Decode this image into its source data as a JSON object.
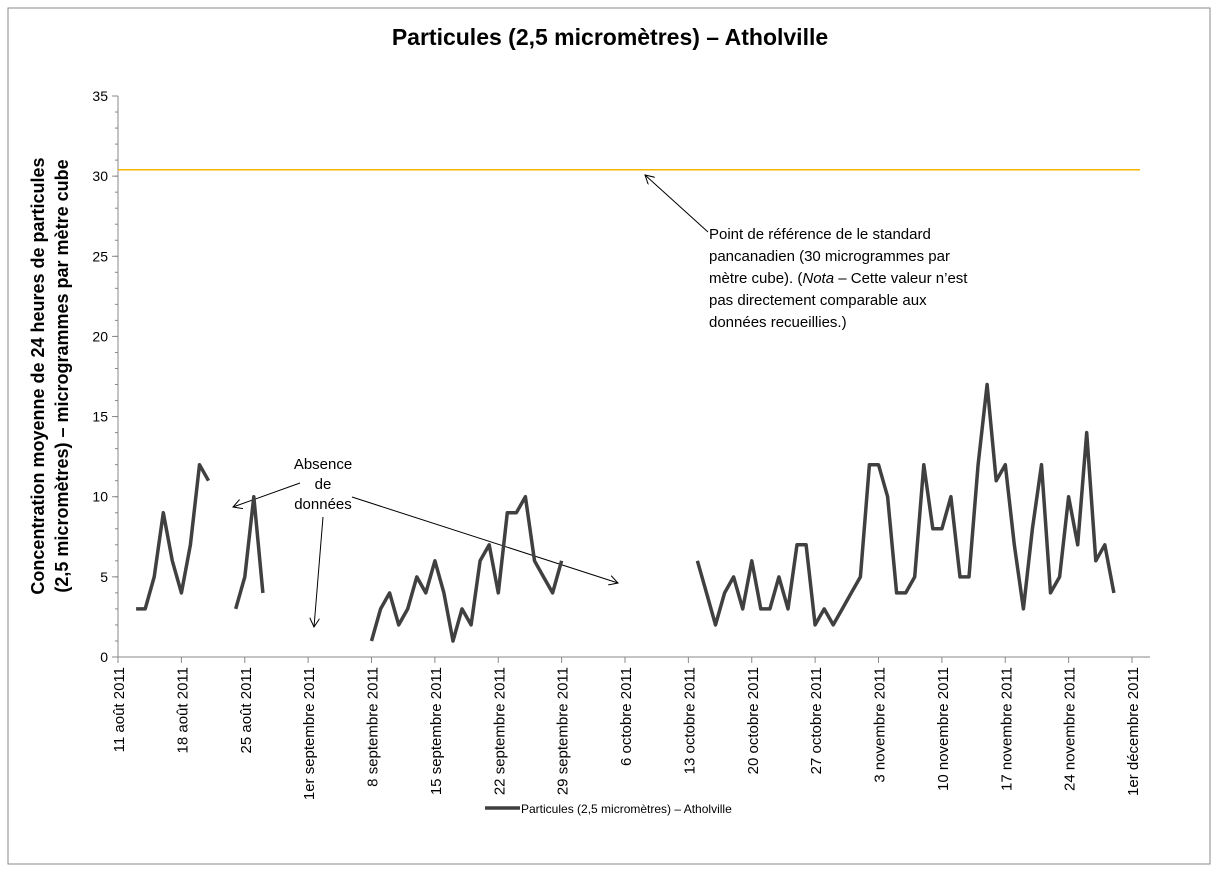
{
  "chart_data": {
    "type": "line",
    "title": "Particules (2,5 micromètres) – Atholville",
    "y_label_lines": [
      "Concentration moyenne de 24 heures de particules",
      "(2,5 micromètres) – microgrammes par mètre cube"
    ],
    "x": [
      "2011-08-13",
      "2011-08-14",
      "2011-08-15",
      "2011-08-16",
      "2011-08-17",
      "2011-08-18",
      "2011-08-19",
      "2011-08-20",
      "2011-08-21",
      "2011-08-22",
      "2011-08-24",
      "2011-08-25",
      "2011-08-26",
      "2011-08-27",
      "2011-08-28",
      "2011-09-08",
      "2011-09-09",
      "2011-09-10",
      "2011-09-11",
      "2011-09-12",
      "2011-09-13",
      "2011-09-14",
      "2011-09-15",
      "2011-09-16",
      "2011-09-17",
      "2011-09-18",
      "2011-09-19",
      "2011-09-20",
      "2011-09-21",
      "2011-09-22",
      "2011-09-23",
      "2011-09-24",
      "2011-09-25",
      "2011-09-26",
      "2011-09-27",
      "2011-09-28",
      "2011-09-29",
      "2011-09-30",
      "2011-10-14",
      "2011-10-15",
      "2011-10-16",
      "2011-10-17",
      "2011-10-18",
      "2011-10-19",
      "2011-10-20",
      "2011-10-21",
      "2011-10-22",
      "2011-10-23",
      "2011-10-24",
      "2011-10-25",
      "2011-10-26",
      "2011-10-27",
      "2011-10-28",
      "2011-10-29",
      "2011-10-30",
      "2011-10-31",
      "2011-11-01",
      "2011-11-02",
      "2011-11-03",
      "2011-11-04",
      "2011-11-05",
      "2011-11-06",
      "2011-11-07",
      "2011-11-08",
      "2011-11-09",
      "2011-11-10",
      "2011-11-11",
      "2011-11-12",
      "2011-11-13",
      "2011-11-14",
      "2011-11-15",
      "2011-11-16",
      "2011-11-17",
      "2011-11-18",
      "2011-11-19",
      "2011-11-20",
      "2011-11-21",
      "2011-11-22",
      "2011-11-23",
      "2011-11-24",
      "2011-11-25",
      "2011-11-26",
      "2011-11-27",
      "2011-11-28",
      "2011-11-29"
    ],
    "series": [
      {
        "name": "Particules (2,5 micromètres) – Atholville",
        "color": "#404040",
        "values": [
          3,
          3,
          5,
          9,
          6,
          4,
          7,
          12,
          11,
          null,
          3,
          5,
          10,
          4,
          null,
          1,
          3,
          4,
          2,
          3,
          5,
          4,
          6,
          4,
          1,
          3,
          2,
          6,
          7,
          4,
          9,
          9,
          10,
          6,
          5,
          4,
          6,
          null,
          6,
          4,
          2,
          4,
          5,
          3,
          6,
          3,
          3,
          5,
          3,
          7,
          7,
          2,
          3,
          2,
          3,
          4,
          5,
          12,
          12,
          10,
          4,
          4,
          5,
          12,
          8,
          8,
          10,
          5,
          5,
          12,
          17,
          11,
          12,
          7,
          3,
          8,
          12,
          4,
          5,
          10,
          7,
          14,
          6,
          7,
          4
        ]
      }
    ],
    "reference_line": {
      "value": 30.4,
      "color": "#f5b400"
    },
    "xlim": [
      "2011-08-11",
      "2011-12-01"
    ],
    "xticks": [
      {
        "value": "2011-08-11",
        "label": "11 août 2011"
      },
      {
        "value": "2011-08-18",
        "label": "18 août 2011"
      },
      {
        "value": "2011-08-25",
        "label": "25 août 2011"
      },
      {
        "value": "2011-09-01",
        "label": "1er septembre 2011"
      },
      {
        "value": "2011-09-08",
        "label": "8 septembre 2011"
      },
      {
        "value": "2011-09-15",
        "label": "15 septembre 2011"
      },
      {
        "value": "2011-09-22",
        "label": "22 septembre 2011"
      },
      {
        "value": "2011-09-29",
        "label": "29 septembre 2011"
      },
      {
        "value": "2011-10-06",
        "label": "6 octobre 2011"
      },
      {
        "value": "2011-10-13",
        "label": "13 octobre 2011"
      },
      {
        "value": "2011-10-20",
        "label": "20 octobre 2011"
      },
      {
        "value": "2011-10-27",
        "label": "27 octobre 2011"
      },
      {
        "value": "2011-11-03",
        "label": "3 novembre 2011"
      },
      {
        "value": "2011-11-10",
        "label": "10 novembre 2011"
      },
      {
        "value": "2011-11-17",
        "label": "17 novembre 2011"
      },
      {
        "value": "2011-11-24",
        "label": "24 novembre 2011"
      },
      {
        "value": "2011-12-01",
        "label": "1er décembre 2011"
      }
    ],
    "ylim": [
      0,
      35
    ],
    "yticks": [
      0,
      5,
      10,
      15,
      20,
      25,
      30,
      35
    ],
    "annotations": {
      "reference": [
        "Point de référence de le standard",
        "pancanadien (30 microgrammes par",
        [
          "mètre cube). (",
          "Nota",
          " – Cette valeur n’est"
        ],
        "pas directement comparable aux",
        "données recueillies.)"
      ],
      "missing": [
        "Absence",
        "de",
        "données"
      ]
    },
    "legend": "bottom"
  }
}
